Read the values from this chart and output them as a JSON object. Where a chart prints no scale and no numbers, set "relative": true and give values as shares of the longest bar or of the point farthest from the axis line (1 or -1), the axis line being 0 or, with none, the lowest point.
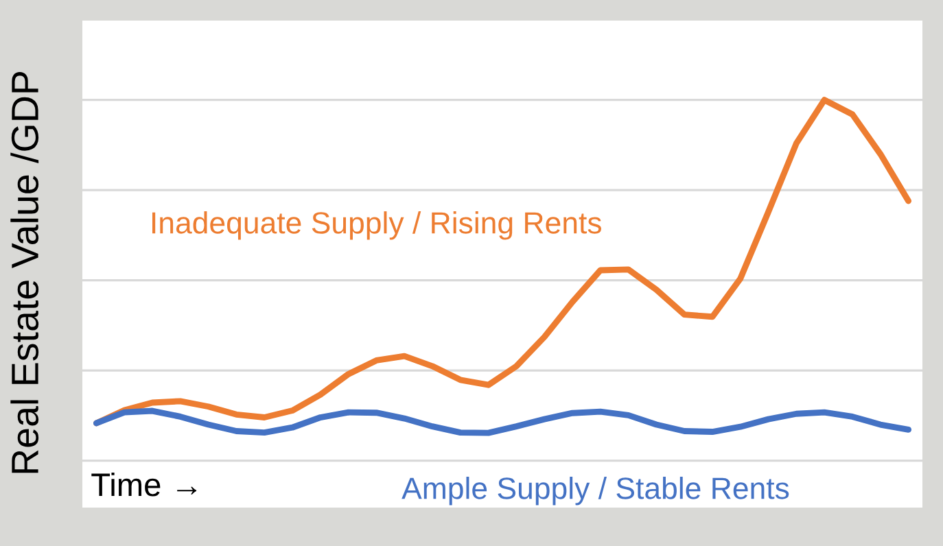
{
  "chart_data": {
    "type": "line",
    "relative": true,
    "xlabel": "Time →",
    "ylabel": "Real Estate Value /GDP",
    "grid": "y",
    "legend": false,
    "categories": [
      null,
      null,
      null,
      null,
      null,
      null,
      null,
      null,
      null,
      null,
      null,
      null,
      null,
      null,
      null,
      null,
      null,
      null,
      null,
      null,
      null,
      null,
      null,
      null,
      null,
      null,
      null,
      null,
      null,
      null
    ],
    "series": [
      {
        "name": "Inadequate Supply / Rising Rents",
        "color": "#ed7d31",
        "values": [
          0.104,
          0.14,
          0.161,
          0.165,
          0.15,
          0.128,
          0.12,
          0.139,
          0.183,
          0.24,
          0.278,
          0.29,
          0.262,
          0.224,
          0.21,
          0.262,
          0.343,
          0.44,
          0.528,
          0.53,
          0.474,
          0.405,
          0.399,
          0.505,
          0.69,
          0.88,
          1.0,
          0.96,
          0.85,
          0.72
        ]
      },
      {
        "name": "Ample Supply / Stable Rents",
        "color": "#4472c4",
        "values": [
          0.104,
          0.134,
          0.138,
          0.122,
          0.1,
          0.082,
          0.078,
          0.092,
          0.12,
          0.134,
          0.133,
          0.117,
          0.095,
          0.078,
          0.077,
          0.095,
          0.115,
          0.132,
          0.136,
          0.126,
          0.1,
          0.082,
          0.08,
          0.094,
          0.115,
          0.13,
          0.134,
          0.122,
          0.1,
          0.086
        ]
      }
    ]
  }
}
